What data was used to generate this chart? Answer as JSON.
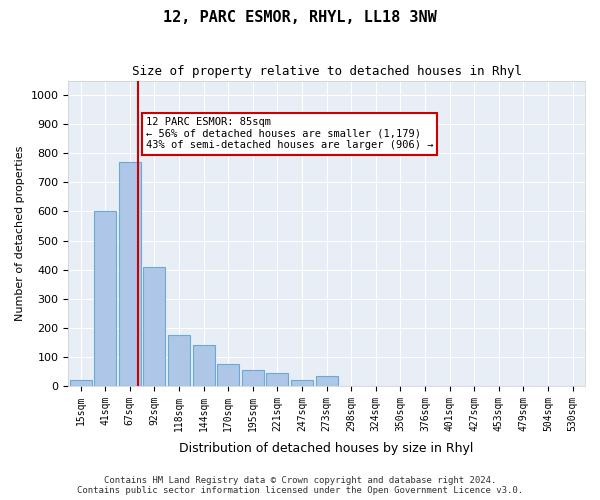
{
  "title": "12, PARC ESMOR, RHYL, LL18 3NW",
  "subtitle": "Size of property relative to detached houses in Rhyl",
  "xlabel": "Distribution of detached houses by size in Rhyl",
  "ylabel": "Number of detached properties",
  "categories": [
    "15sqm",
    "41sqm",
    "67sqm",
    "92sqm",
    "118sqm",
    "144sqm",
    "170sqm",
    "195sqm",
    "221sqm",
    "247sqm",
    "273sqm",
    "298sqm",
    "324sqm",
    "350sqm",
    "376sqm",
    "401sqm",
    "427sqm",
    "453sqm",
    "479sqm",
    "504sqm",
    "530sqm"
  ],
  "values": [
    20,
    600,
    770,
    410,
    175,
    140,
    75,
    55,
    45,
    20,
    35,
    0,
    0,
    0,
    0,
    0,
    0,
    0,
    0,
    0,
    0
  ],
  "bar_color": "#aec6e8",
  "bar_edge_color": "#6aaad4",
  "property_sqm": 85,
  "property_bar_index": 1,
  "red_line_x": 1.62,
  "annotation_text": "12 PARC ESMOR: 85sqm\n← 56% of detached houses are smaller (1,179)\n43% of semi-detached houses are larger (906) →",
  "annotation_box_color": "#ffffff",
  "annotation_box_edge_color": "#cc0000",
  "ylim": [
    0,
    1050
  ],
  "yticks": [
    0,
    100,
    200,
    300,
    400,
    500,
    600,
    700,
    800,
    900,
    1000
  ],
  "background_color": "#e8eef5",
  "footer_line1": "Contains HM Land Registry data © Crown copyright and database right 2024.",
  "footer_line2": "Contains public sector information licensed under the Open Government Licence v3.0."
}
